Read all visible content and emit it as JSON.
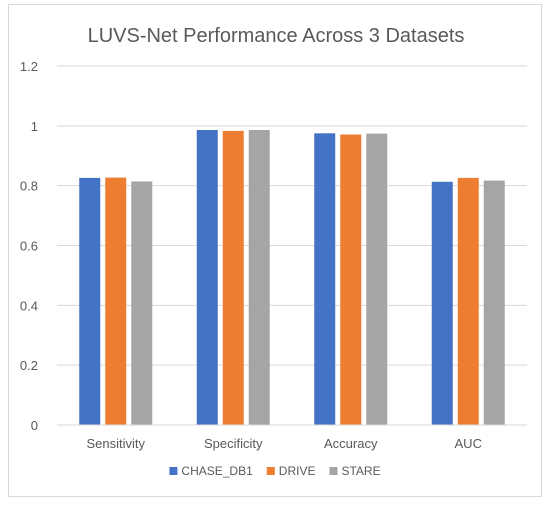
{
  "chart_data": {
    "type": "bar",
    "title": "LUVS-Net Performance Across 3 Datasets",
    "xlabel": "",
    "ylabel": "",
    "categories": [
      "Sensitivity",
      "Specificity",
      "Accuracy",
      "AUC"
    ],
    "series": [
      {
        "name": "CHASE_DB1",
        "color": "#4472C4",
        "values": [
          0.826,
          0.986,
          0.975,
          0.813
        ]
      },
      {
        "name": "DRIVE",
        "color": "#ED7D31",
        "values": [
          0.827,
          0.983,
          0.971,
          0.826
        ]
      },
      {
        "name": "STARE",
        "color": "#A5A5A5",
        "values": [
          0.814,
          0.986,
          0.974,
          0.817
        ]
      }
    ],
    "ylim": [
      0,
      1.2
    ],
    "yticks": [
      "0",
      "0.2",
      "0.4",
      "0.6",
      "0.8",
      "1",
      "1.2"
    ],
    "grid": true,
    "legend_position": "bottom"
  }
}
